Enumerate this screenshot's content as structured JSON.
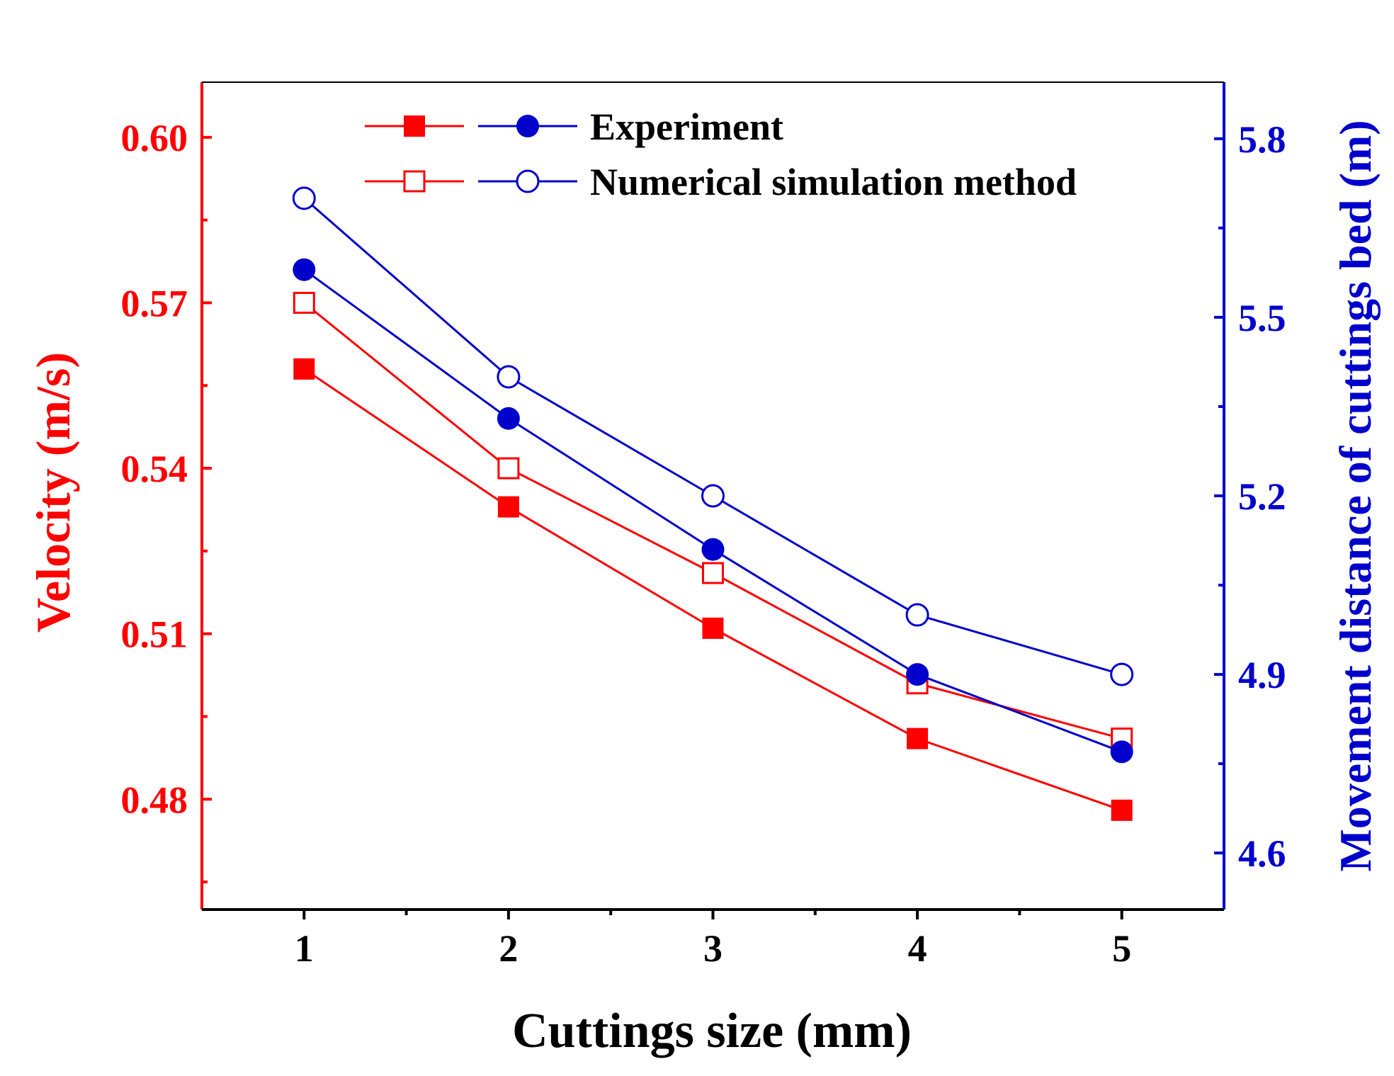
{
  "chart_data": {
    "type": "line",
    "xlabel": "Cuttings size (mm)",
    "ylabel_left": "Velocity (m/s)",
    "ylabel_right": "Movement distance of cuttings bed (m)",
    "x": [
      1,
      2,
      3,
      4,
      5
    ],
    "x_ticks": [
      "1",
      "2",
      "3",
      "4",
      "5"
    ],
    "xlim": [
      0.5,
      5.5
    ],
    "ylim_left": [
      0.46,
      0.61
    ],
    "ylim_right": [
      4.505,
      5.895
    ],
    "y_ticks_left": [
      "0.48",
      "0.51",
      "0.54",
      "0.57",
      "0.60"
    ],
    "y_ticks_right": [
      "4.6",
      "4.9",
      "5.2",
      "5.5",
      "5.8"
    ],
    "colors": {
      "velocity": "#ff0000",
      "distance": "#0000cc",
      "axis": "#000000"
    },
    "legend": {
      "position": "top-center",
      "entries": [
        "Experiment",
        "Numerical simulation method"
      ]
    },
    "series": [
      {
        "name": "Experiment (velocity)",
        "axis": "left",
        "marker": "filled-square",
        "values": [
          0.558,
          0.533,
          0.511,
          0.491,
          0.478
        ]
      },
      {
        "name": "Numerical simulation method (velocity)",
        "axis": "left",
        "marker": "open-square",
        "values": [
          0.57,
          0.54,
          0.521,
          0.501,
          0.491
        ]
      },
      {
        "name": "Experiment (movement distance)",
        "axis": "right",
        "marker": "filled-circle",
        "values": [
          5.58,
          5.33,
          5.11,
          4.9,
          4.77
        ]
      },
      {
        "name": "Numerical simulation method (movement distance)",
        "axis": "right",
        "marker": "open-circle",
        "values": [
          5.7,
          5.4,
          5.2,
          5.0,
          4.9
        ]
      }
    ]
  }
}
